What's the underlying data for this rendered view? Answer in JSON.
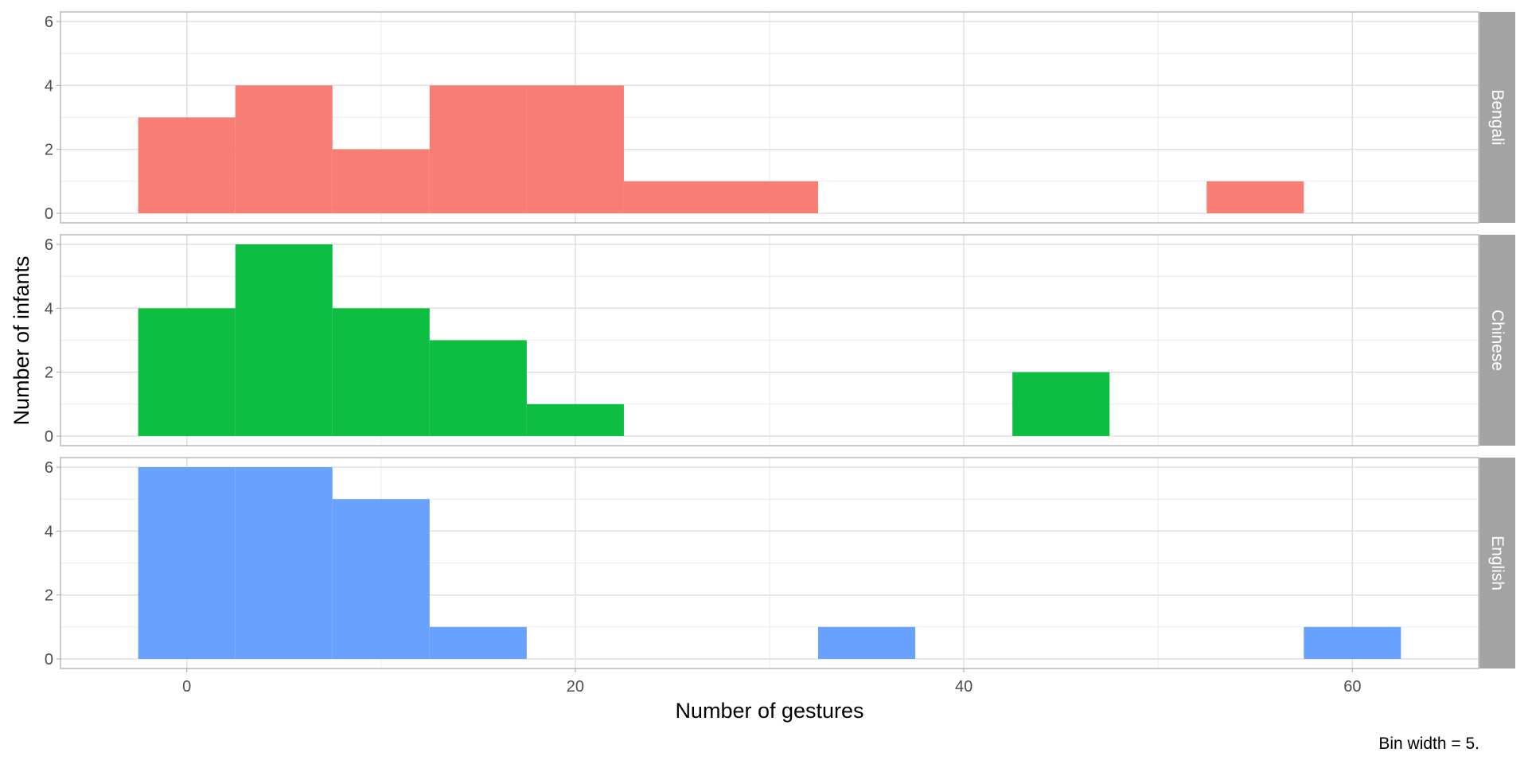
{
  "chart_data": {
    "type": "bar",
    "subtype": "faceted-histogram",
    "xlabel": "Number of gestures",
    "ylabel": "Number of infants",
    "caption": "Bin width = 5.",
    "xlim": [
      -6.5,
      66.5
    ],
    "ylim": [
      -0.3,
      6.3
    ],
    "x_ticks": [
      0,
      20,
      40,
      60
    ],
    "y_ticks": [
      0,
      2,
      4,
      6
    ],
    "bin_width": 5,
    "grid": true,
    "series": [
      {
        "name": "Bengali",
        "color": "#F8766D",
        "bins": [
          {
            "start": -2.5,
            "end": 2.5,
            "count": 3
          },
          {
            "start": 2.5,
            "end": 7.5,
            "count": 4
          },
          {
            "start": 7.5,
            "end": 12.5,
            "count": 2
          },
          {
            "start": 12.5,
            "end": 17.5,
            "count": 4
          },
          {
            "start": 17.5,
            "end": 22.5,
            "count": 4
          },
          {
            "start": 22.5,
            "end": 27.5,
            "count": 1
          },
          {
            "start": 27.5,
            "end": 32.5,
            "count": 1
          },
          {
            "start": 52.5,
            "end": 57.5,
            "count": 1
          }
        ]
      },
      {
        "name": "Chinese",
        "color": "#00BA38",
        "bins": [
          {
            "start": -2.5,
            "end": 2.5,
            "count": 4
          },
          {
            "start": 2.5,
            "end": 7.5,
            "count": 6
          },
          {
            "start": 7.5,
            "end": 12.5,
            "count": 4
          },
          {
            "start": 12.5,
            "end": 17.5,
            "count": 3
          },
          {
            "start": 17.5,
            "end": 22.5,
            "count": 1
          },
          {
            "start": 42.5,
            "end": 47.5,
            "count": 2
          }
        ]
      },
      {
        "name": "English",
        "color": "#619CFF",
        "bins": [
          {
            "start": -2.5,
            "end": 2.5,
            "count": 6
          },
          {
            "start": 2.5,
            "end": 7.5,
            "count": 6
          },
          {
            "start": 7.5,
            "end": 12.5,
            "count": 5
          },
          {
            "start": 12.5,
            "end": 17.5,
            "count": 1
          },
          {
            "start": 32.5,
            "end": 37.5,
            "count": 1
          },
          {
            "start": 57.5,
            "end": 62.5,
            "count": 1
          }
        ]
      }
    ]
  }
}
